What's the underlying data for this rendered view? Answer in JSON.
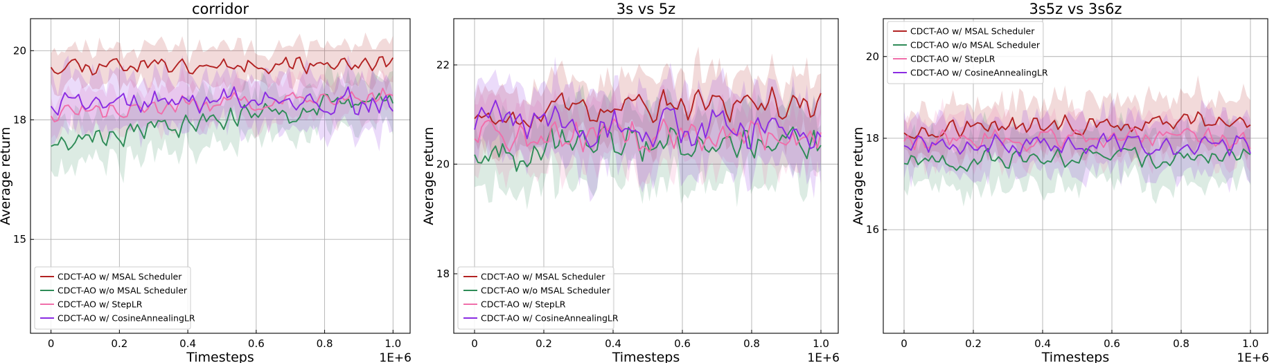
{
  "figure": {
    "x_exponent_label": "1E+6"
  },
  "legend_colors": {
    "msal": "#b22222",
    "wo_msal": "#2e8b57",
    "steplr": "#f06eaa",
    "cosine": "#8a2be2"
  },
  "chart_data": [
    {
      "type": "line",
      "title": "corridor",
      "xlabel": "Timesteps",
      "ylabel": "Average return",
      "x_range": [
        0,
        1.0
      ],
      "xlim": [
        -0.06,
        1.05
      ],
      "ylim": [
        13.0,
        21.0
      ],
      "y_scale": "log",
      "xticks": [
        0,
        0.2,
        0.4,
        0.6,
        0.8,
        1.0
      ],
      "xtick_labels": [
        "0",
        "0.2",
        "0.4",
        "0.6",
        "0.8",
        "1.0"
      ],
      "yticks": [
        15,
        18,
        20
      ],
      "ytick_labels": [
        "15",
        "18",
        "20"
      ],
      "grid": true,
      "legend_position": "lower-left",
      "points": 100,
      "series": [
        {
          "name": "CDCT-AO w/ MSAL Scheduler",
          "color": "#b22222",
          "mean_start": 19.6,
          "mean_end": 19.6,
          "amplitude": 0.35,
          "band": 0.55,
          "seed": 11
        },
        {
          "name": "CDCT-AO w/o MSAL Scheduler",
          "color": "#2e8b57",
          "mean_start": 17.4,
          "mean_end": 18.6,
          "amplitude": 0.4,
          "band": 0.7,
          "seed": 23
        },
        {
          "name": "CDCT-AO w/ StepLR",
          "color": "#f06eaa",
          "mean_start": 18.2,
          "mean_end": 18.7,
          "amplitude": 0.35,
          "band": 0.55,
          "seed": 37
        },
        {
          "name": "CDCT-AO w/ CosineAnnealingLR",
          "color": "#8a2be2",
          "mean_start": 18.5,
          "mean_end": 18.5,
          "amplitude": 0.45,
          "band": 0.75,
          "seed": 41
        }
      ]
    },
    {
      "type": "line",
      "title": "3s vs 5z",
      "xlabel": "Timesteps",
      "ylabel": "Average return",
      "x_range": [
        0,
        1.0
      ],
      "xlim": [
        -0.06,
        1.05
      ],
      "ylim": [
        17.0,
        23.0
      ],
      "y_scale": "log",
      "xticks": [
        0,
        0.2,
        0.4,
        0.6,
        0.8,
        1.0
      ],
      "xtick_labels": [
        "0",
        "0.2",
        "0.4",
        "0.6",
        "0.8",
        "1.0"
      ],
      "yticks": [
        18,
        20,
        22
      ],
      "ytick_labels": [
        "18",
        "20",
        "22"
      ],
      "grid": true,
      "legend_position": "lower-left",
      "points": 100,
      "series": [
        {
          "name": "CDCT-AO w/ MSAL Scheduler",
          "color": "#b22222",
          "mean_start": 21.0,
          "mean_end": 21.2,
          "amplitude": 0.4,
          "band": 0.6,
          "seed": 53
        },
        {
          "name": "CDCT-AO w/o MSAL Scheduler",
          "color": "#2e8b57",
          "mean_start": 20.3,
          "mean_end": 20.4,
          "amplitude": 0.45,
          "band": 0.7,
          "seed": 67
        },
        {
          "name": "CDCT-AO w/ StepLR",
          "color": "#f06eaa",
          "mean_start": 20.6,
          "mean_end": 20.5,
          "amplitude": 0.4,
          "band": 0.6,
          "seed": 71
        },
        {
          "name": "CDCT-AO w/ CosineAnnealingLR",
          "color": "#8a2be2",
          "mean_start": 20.8,
          "mean_end": 20.6,
          "amplitude": 0.5,
          "band": 0.75,
          "seed": 89
        }
      ]
    },
    {
      "type": "line",
      "title": "3s5z vs 3s6z",
      "xlabel": "Timesteps",
      "ylabel": "Average return",
      "x_range": [
        0,
        1.0
      ],
      "xlim": [
        -0.06,
        1.05
      ],
      "ylim": [
        14.0,
        21.0
      ],
      "y_scale": "log",
      "xticks": [
        0,
        0.2,
        0.4,
        0.6,
        0.8,
        1.0
      ],
      "xtick_labels": [
        "0",
        "0.2",
        "0.4",
        "0.6",
        "0.8",
        "1.0"
      ],
      "yticks": [
        16,
        18,
        20
      ],
      "ytick_labels": [
        "16",
        "18",
        "20"
      ],
      "grid": true,
      "legend_position": "top-left",
      "points": 100,
      "series": [
        {
          "name": "CDCT-AO w/ MSAL Scheduler",
          "color": "#b22222",
          "mean_start": 18.2,
          "mean_end": 18.4,
          "amplitude": 0.3,
          "band": 0.55,
          "seed": 97
        },
        {
          "name": "CDCT-AO w/o MSAL Scheduler",
          "color": "#2e8b57",
          "mean_start": 17.5,
          "mean_end": 17.6,
          "amplitude": 0.3,
          "band": 0.6,
          "seed": 101
        },
        {
          "name": "CDCT-AO w/ StepLR",
          "color": "#f06eaa",
          "mean_start": 18.0,
          "mean_end": 18.0,
          "amplitude": 0.3,
          "band": 0.5,
          "seed": 113
        },
        {
          "name": "CDCT-AO w/ CosineAnnealingLR",
          "color": "#8a2be2",
          "mean_start": 17.9,
          "mean_end": 17.8,
          "amplitude": 0.3,
          "band": 0.6,
          "seed": 127
        }
      ]
    }
  ]
}
